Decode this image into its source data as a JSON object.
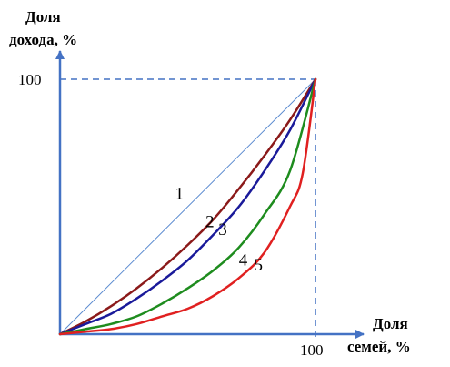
{
  "chart_data": {
    "type": "line",
    "ylabel_lines": [
      "Доля",
      "дохода, %"
    ],
    "xlabel_lines": [
      "Доля",
      "семей, %"
    ],
    "xlim": [
      0,
      100
    ],
    "ylim": [
      0,
      100
    ],
    "x_tick_label": "100",
    "y_tick_label": "100",
    "guide_line_color": "#4472C4",
    "axis_color": "#4472C4",
    "series": [
      {
        "label": "1",
        "color": "#5B8BD0",
        "points": [
          [
            0,
            0
          ],
          [
            100,
            100
          ]
        ]
      },
      {
        "label": "2",
        "color": "#8B1A1A",
        "points": [
          [
            0,
            0
          ],
          [
            10,
            5
          ],
          [
            20,
            11
          ],
          [
            30,
            18
          ],
          [
            40,
            26
          ],
          [
            50,
            35
          ],
          [
            60,
            45
          ],
          [
            70,
            57
          ],
          [
            80,
            70
          ],
          [
            90,
            84
          ],
          [
            100,
            100
          ]
        ]
      },
      {
        "label": "3",
        "color": "#1A1A9A",
        "points": [
          [
            0,
            0
          ],
          [
            10,
            4
          ],
          [
            20,
            8
          ],
          [
            30,
            14
          ],
          [
            40,
            21
          ],
          [
            50,
            29
          ],
          [
            60,
            39
          ],
          [
            70,
            50
          ],
          [
            80,
            64
          ],
          [
            90,
            80
          ],
          [
            100,
            100
          ]
        ]
      },
      {
        "label": "4",
        "color": "#1E8C1E",
        "points": [
          [
            0,
            0
          ],
          [
            10,
            2
          ],
          [
            20,
            4
          ],
          [
            30,
            7
          ],
          [
            40,
            12
          ],
          [
            50,
            18
          ],
          [
            60,
            25
          ],
          [
            70,
            34
          ],
          [
            80,
            47
          ],
          [
            90,
            64
          ],
          [
            100,
            100
          ]
        ]
      },
      {
        "label": "5",
        "color": "#E02020",
        "points": [
          [
            0,
            0
          ],
          [
            10,
            1
          ],
          [
            20,
            2
          ],
          [
            30,
            4
          ],
          [
            40,
            7
          ],
          [
            50,
            10
          ],
          [
            60,
            15
          ],
          [
            70,
            22
          ],
          [
            80,
            32
          ],
          [
            90,
            50
          ],
          [
            95,
            63
          ],
          [
            100,
            100
          ]
        ]
      }
    ]
  }
}
